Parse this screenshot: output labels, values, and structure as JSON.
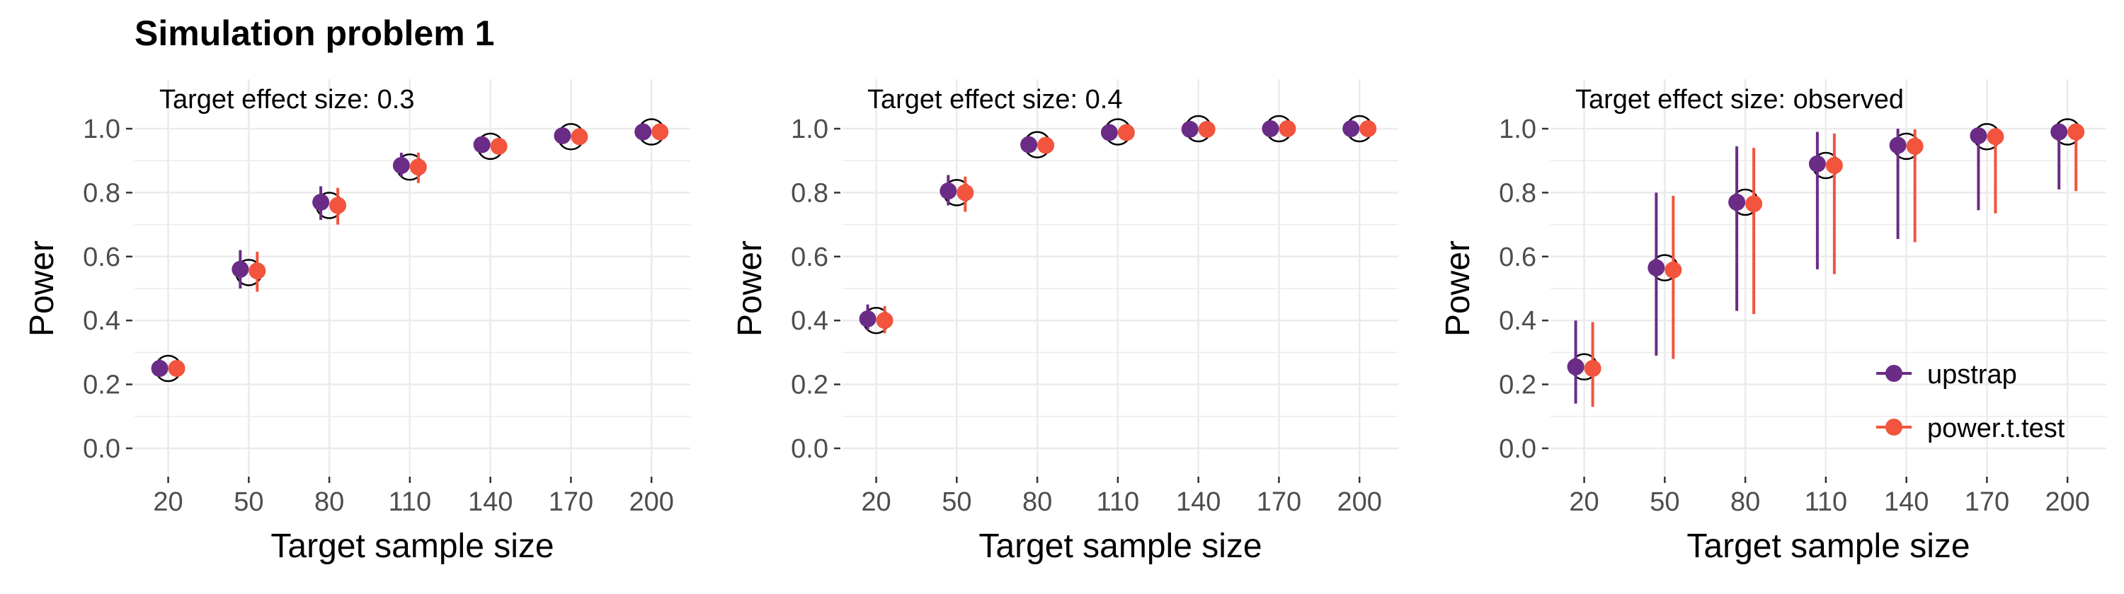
{
  "figure": {
    "title": "Simulation problem 1"
  },
  "colors": {
    "upstrap": "#6A2C86",
    "power_t_test": "#F2543D",
    "grid": "#EBEBEB",
    "axis_text": "#4D4D4D"
  },
  "legend": {
    "position": "bottom-right of third panel",
    "items": [
      {
        "label": "upstrap",
        "color": "#6A2C86"
      },
      {
        "label": "power.t.test",
        "color": "#F2543D"
      }
    ]
  },
  "chart_data": [
    {
      "type": "scatter",
      "subtitle": "Target effect size: 0.3",
      "xlabel": "Target sample size",
      "ylabel": "Power",
      "ylim": [
        0,
        1
      ],
      "yticks": [
        "0.0",
        "0.2",
        "0.4",
        "0.6",
        "0.8",
        "1.0"
      ],
      "categories": [
        "20",
        "50",
        "80",
        "110",
        "140",
        "170",
        "200"
      ],
      "reference": [
        0.25,
        0.55,
        0.76,
        0.88,
        0.945,
        0.975,
        0.99
      ],
      "series": [
        {
          "name": "upstrap",
          "values": [
            0.25,
            0.56,
            0.77,
            0.885,
            0.95,
            0.978,
            0.99
          ],
          "lower": [
            0.225,
            0.5,
            0.715,
            0.85,
            0.935,
            0.97,
            0.985
          ],
          "upper": [
            0.28,
            0.62,
            0.82,
            0.925,
            0.965,
            0.99,
            0.995
          ]
        },
        {
          "name": "power.t.test",
          "values": [
            0.25,
            0.555,
            0.76,
            0.88,
            0.945,
            0.975,
            0.99
          ],
          "lower": [
            0.225,
            0.49,
            0.7,
            0.83,
            0.925,
            0.96,
            0.98
          ],
          "upper": [
            0.275,
            0.615,
            0.815,
            0.925,
            0.96,
            0.985,
            0.995
          ]
        }
      ]
    },
    {
      "type": "scatter",
      "subtitle": "Target effect size: 0.4",
      "xlabel": "Target sample size",
      "ylabel": "Power",
      "ylim": [
        0,
        1
      ],
      "yticks": [
        "0.0",
        "0.2",
        "0.4",
        "0.6",
        "0.8",
        "1.0"
      ],
      "categories": [
        "20",
        "50",
        "80",
        "110",
        "140",
        "170",
        "200"
      ],
      "reference": [
        0.4,
        0.8,
        0.95,
        0.99,
        1.0,
        1.0,
        1.0
      ],
      "series": [
        {
          "name": "upstrap",
          "values": [
            0.405,
            0.805,
            0.95,
            0.988,
            0.998,
            1.0,
            1.0
          ],
          "lower": [
            0.37,
            0.76,
            0.93,
            0.975,
            0.99,
            0.995,
            0.995
          ],
          "upper": [
            0.45,
            0.855,
            0.968,
            0.998,
            1.0,
            1.0,
            1.0
          ]
        },
        {
          "name": "power.t.test",
          "values": [
            0.4,
            0.8,
            0.948,
            0.988,
            0.998,
            1.0,
            1.0
          ],
          "lower": [
            0.36,
            0.74,
            0.925,
            0.975,
            0.99,
            0.995,
            0.995
          ],
          "upper": [
            0.445,
            0.85,
            0.97,
            0.998,
            1.0,
            1.0,
            1.0
          ]
        }
      ]
    },
    {
      "type": "scatter",
      "subtitle": "Target effect size: observed",
      "xlabel": "Target sample size",
      "ylabel": "Power",
      "ylim": [
        0,
        1
      ],
      "yticks": [
        "0.0",
        "0.2",
        "0.4",
        "0.6",
        "0.8",
        "1.0"
      ],
      "categories": [
        "20",
        "50",
        "80",
        "110",
        "140",
        "170",
        "200"
      ],
      "reference": [
        0.255,
        0.565,
        0.77,
        0.885,
        0.945,
        0.975,
        0.99
      ],
      "series": [
        {
          "name": "upstrap",
          "values": [
            0.255,
            0.565,
            0.77,
            0.89,
            0.948,
            0.978,
            0.99
          ],
          "lower": [
            0.14,
            0.29,
            0.43,
            0.56,
            0.655,
            0.745,
            0.81
          ],
          "upper": [
            0.4,
            0.8,
            0.945,
            0.99,
            1.0,
            1.0,
            1.0
          ]
        },
        {
          "name": "power.t.test",
          "values": [
            0.25,
            0.558,
            0.765,
            0.885,
            0.945,
            0.975,
            0.99
          ],
          "lower": [
            0.13,
            0.28,
            0.42,
            0.545,
            0.645,
            0.735,
            0.805
          ],
          "upper": [
            0.395,
            0.79,
            0.94,
            0.985,
            0.998,
            1.0,
            1.0
          ]
        }
      ]
    }
  ]
}
